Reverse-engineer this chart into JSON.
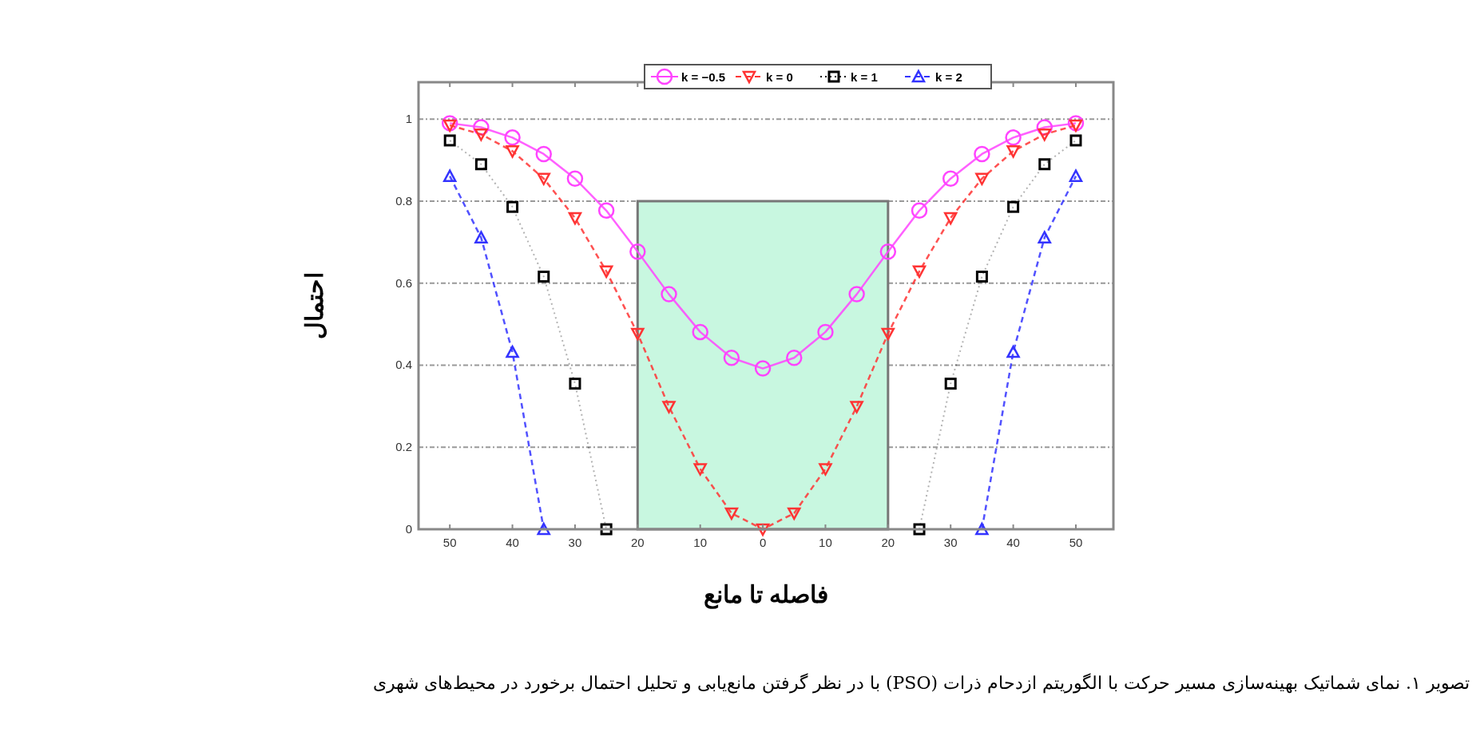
{
  "chart_data": {
    "type": "line",
    "xlabel": "فاصله تا مانع",
    "ylabel": "احتمال",
    "annotations": [
      "تصویر ۱. نمای شماتیک بهینه‌سازی مسیر حرکت با الگوریتم ازدحام ذرات (PSO) با در نظر گرفتن مانع‌یابی و تحلیل احتمال برخورد در محیط‌های شهری"
    ],
    "xlim": [
      -55,
      56
    ],
    "xticks": [
      {
        "value": -50,
        "label": "50"
      },
      {
        "value": -40,
        "label": "40"
      },
      {
        "value": -30,
        "label": "30"
      },
      {
        "value": -20,
        "label": "20"
      },
      {
        "value": -10,
        "label": "10"
      },
      0,
      10,
      20,
      30,
      40,
      50
    ],
    "ylim": [
      0,
      1.09
    ],
    "yticks": [
      0,
      {
        "value": 0.2,
        "label": "0.2"
      },
      {
        "value": 0.4,
        "label": "0.4"
      },
      {
        "value": 0.6,
        "label": "0.6"
      },
      {
        "value": 0.8,
        "label": "0.8"
      },
      1
    ],
    "grid": "y",
    "legend": "top",
    "series": [
      {
        "type": "area",
        "color": "#c8f7e0",
        "x": [
          -20,
          20
        ],
        "values": [
          0.8,
          0.8
        ]
      },
      {
        "name": "k = −0.5",
        "color": "#ff44ff",
        "marker": "circle",
        "line_style": "solid",
        "x": [
          -50,
          -45,
          -40,
          -35,
          -30,
          -25,
          -20,
          -15,
          -10,
          -5,
          0,
          5,
          10,
          15,
          20,
          25,
          30,
          35,
          40,
          45,
          50
        ],
        "values": [
          0.99,
          0.98,
          0.955,
          0.915,
          0.855,
          0.777,
          0.677,
          0.573,
          0.481,
          0.418,
          0.392,
          0.418,
          0.481,
          0.573,
          0.677,
          0.777,
          0.855,
          0.915,
          0.955,
          0.98,
          0.99
        ]
      },
      {
        "name": "k = 0",
        "color": "#ff3333",
        "marker": "triangle-down",
        "line_style": "dashed",
        "x": [
          -50,
          -45,
          -40,
          -35,
          -30,
          -25,
          -20,
          -15,
          -10,
          -5,
          0,
          5,
          10,
          15,
          20,
          25,
          30,
          35,
          40,
          45,
          50
        ],
        "values": [
          0.985,
          0.963,
          0.922,
          0.855,
          0.759,
          0.629,
          0.477,
          0.299,
          0.147,
          0.039,
          0,
          0.039,
          0.147,
          0.299,
          0.477,
          0.629,
          0.759,
          0.855,
          0.922,
          0.963,
          0.985
        ]
      },
      {
        "name": "k = 1",
        "color": "#000000",
        "marker": "square",
        "line_style": "dotted",
        "x": [
          -50,
          -45,
          -40,
          -35,
          -30,
          -25,
          0,
          25,
          30,
          35,
          40,
          45,
          50
        ],
        "values": [
          0.948,
          0.89,
          0.786,
          0.616,
          0.355,
          0,
          null,
          0,
          0.355,
          0.616,
          0.786,
          0.89,
          0.948
        ]
      },
      {
        "name": "k = 2",
        "color": "#3333ff",
        "marker": "triangle",
        "line_style": "dashed",
        "x": [
          -50,
          -45,
          -40,
          -35,
          0,
          35,
          40,
          45,
          50
        ],
        "values": [
          0.861,
          0.711,
          0.432,
          0,
          null,
          0,
          0.432,
          0.711,
          0.861
        ]
      }
    ]
  }
}
